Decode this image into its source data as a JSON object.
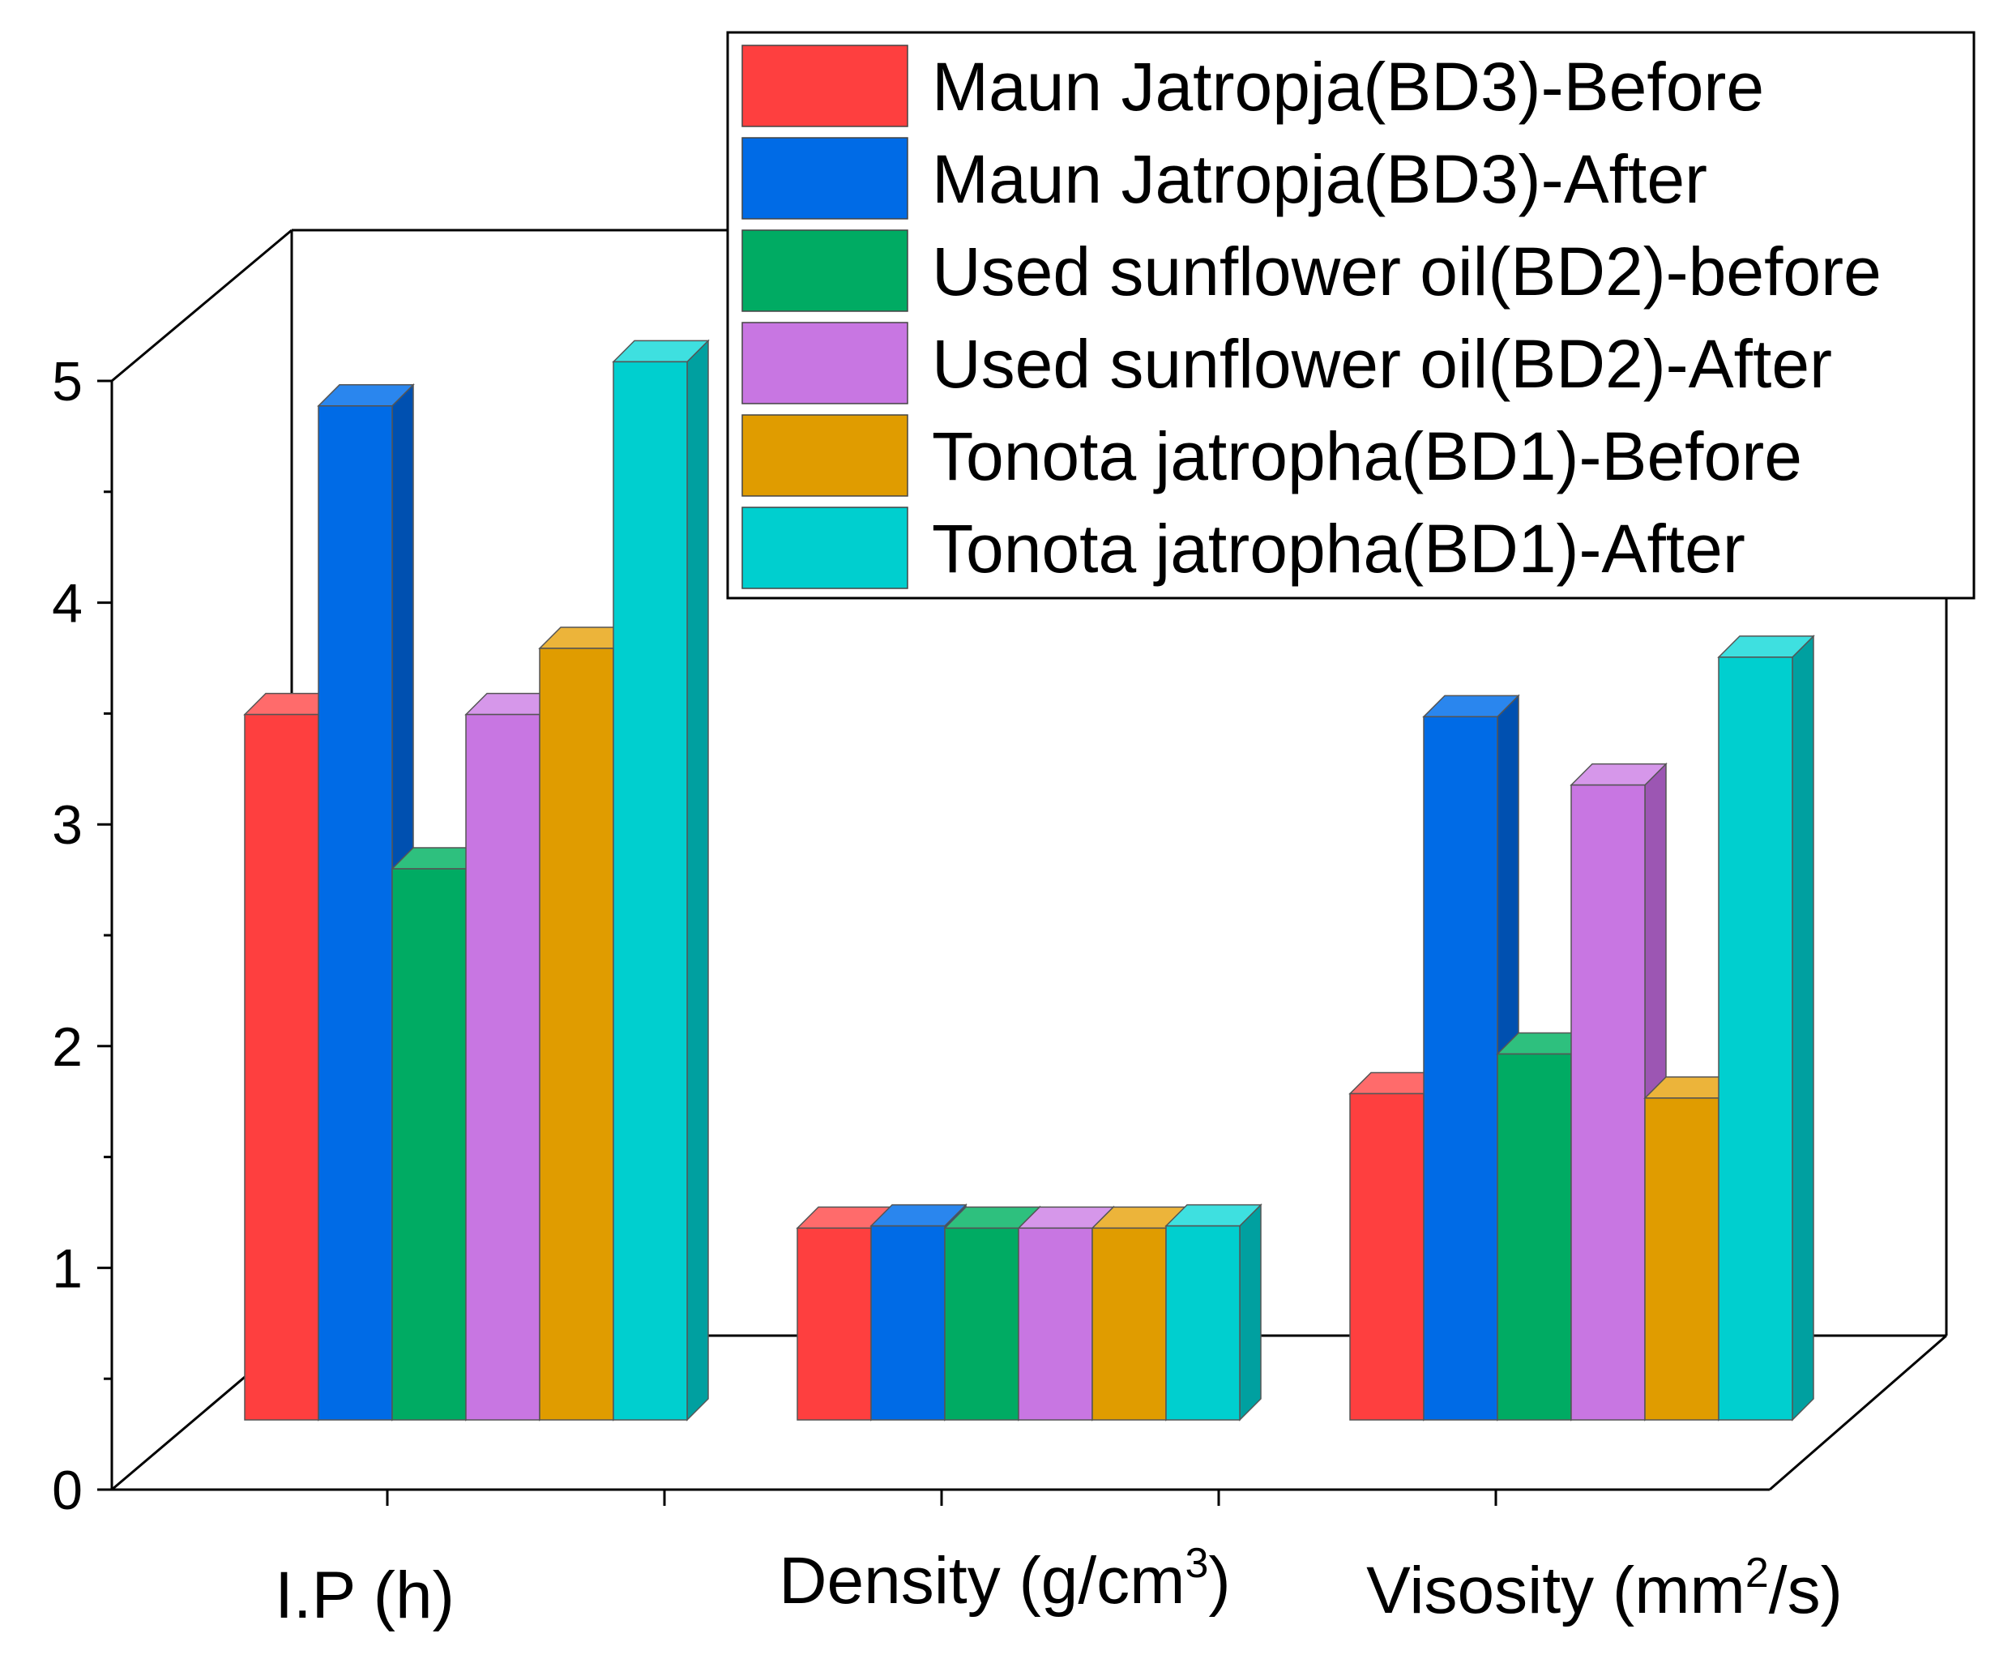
{
  "chart_data": {
    "type": "bar",
    "style": "3d-grouped",
    "categories": [
      "I.P (h)",
      "Density (g/cm3)",
      "Visosity (mm2/s)"
    ],
    "category_labels": [
      {
        "base": "I.P (h)",
        "sup": "",
        "tail": ""
      },
      {
        "base": "Density (g/cm",
        "sup": "3",
        "tail": ")"
      },
      {
        "base": "Visosity (mm",
        "sup": "2",
        "tail": "/s)"
      }
    ],
    "series": [
      {
        "name": "Maun Jatropja(BD3)-Before",
        "values": [
          3.2,
          0.87,
          1.48
        ],
        "color": "#fe3f3f",
        "side": "#c92f2f",
        "top": "#ff6b6b"
      },
      {
        "name": "Maun Jatropja(BD3)-After",
        "values": [
          4.6,
          0.88,
          3.19
        ],
        "color": "#006be6",
        "side": "#0050b0",
        "top": "#2a86ee"
      },
      {
        "name": "Used sunflower oil(BD2)-before",
        "values": [
          2.5,
          0.87,
          1.66
        ],
        "color": "#00ab63",
        "side": "#00804a",
        "top": "#2ec07e"
      },
      {
        "name": "Used sunflower oil(BD2)-After",
        "values": [
          3.2,
          0.87,
          2.88
        ],
        "color": "#c876e2",
        "side": "#9c56b3",
        "top": "#d697ea"
      },
      {
        "name": "Tonota jatropha(BD1)-Before",
        "values": [
          3.5,
          0.87,
          1.46
        ],
        "color": "#e09c00",
        "side": "#b07a00",
        "top": "#ecb43a"
      },
      {
        "name": "Tonota jatropha(BD1)-After",
        "values": [
          4.8,
          0.88,
          3.46
        ],
        "color": "#00cfcf",
        "side": "#00a0a0",
        "top": "#3ee0e0"
      }
    ],
    "ylim": [
      0,
      5
    ],
    "yticks": [
      "0",
      "1",
      "2",
      "3",
      "4",
      "5"
    ],
    "legend": "top-right",
    "grid": false
  }
}
